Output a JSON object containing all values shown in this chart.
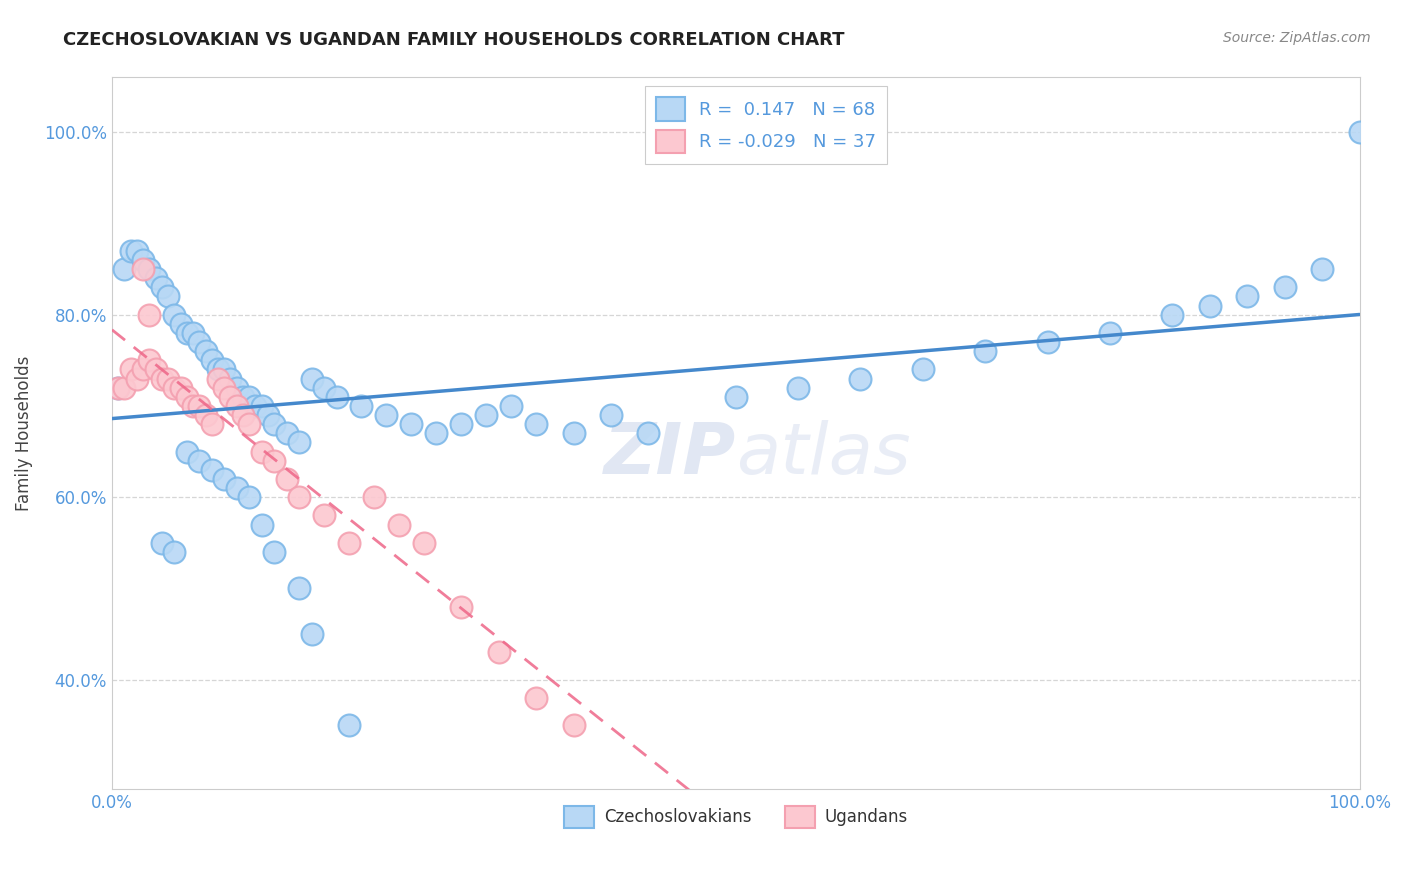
{
  "title": "CZECHOSLOVAKIAN VS UGANDAN FAMILY HOUSEHOLDS CORRELATION CHART",
  "source": "Source: ZipAtlas.com",
  "ylabel": "Family Households",
  "r_czech": 0.147,
  "n_czech": 68,
  "r_ugandan": -0.029,
  "n_ugandan": 37,
  "background": "#ffffff",
  "grid_color": "#cccccc",
  "czech_edge": "#7db8e8",
  "czech_face": "#b8d8f5",
  "ugandan_edge": "#f4a0b0",
  "ugandan_face": "#fcc8d0",
  "trend_czech_color": "#4488cc",
  "trend_ugandan_color": "#ee6688",
  "tick_label_color": "#5599dd",
  "watermark_color": "#ccddeebb",
  "czech_x": [
    0.5,
    1.0,
    1.5,
    2.0,
    2.5,
    3.0,
    3.5,
    4.0,
    4.5,
    5.0,
    5.5,
    6.0,
    6.5,
    7.0,
    7.5,
    8.0,
    8.5,
    9.0,
    9.5,
    10.0,
    10.5,
    11.0,
    11.5,
    12.0,
    12.5,
    13.0,
    14.0,
    15.0,
    16.0,
    17.0,
    18.0,
    20.0,
    22.0,
    24.0,
    26.0,
    28.0,
    30.0,
    32.0,
    34.0,
    37.0,
    40.0,
    43.0,
    50.0,
    55.0,
    60.0,
    65.0,
    70.0,
    75.0,
    80.0,
    85.0,
    88.0,
    91.0,
    94.0,
    97.0,
    100.0,
    6.0,
    7.0,
    8.0,
    9.0,
    10.0,
    11.0,
    12.0,
    13.0,
    4.0,
    5.0,
    15.0,
    16.0,
    19.0
  ],
  "czech_y": [
    72.0,
    85.0,
    87.0,
    87.0,
    86.0,
    85.0,
    84.0,
    83.0,
    82.0,
    80.0,
    79.0,
    78.0,
    78.0,
    77.0,
    76.0,
    75.0,
    74.0,
    74.0,
    73.0,
    72.0,
    71.0,
    71.0,
    70.0,
    70.0,
    69.0,
    68.0,
    67.0,
    66.0,
    73.0,
    72.0,
    71.0,
    70.0,
    69.0,
    68.0,
    67.0,
    68.0,
    69.0,
    70.0,
    68.0,
    67.0,
    69.0,
    67.0,
    71.0,
    72.0,
    73.0,
    74.0,
    76.0,
    77.0,
    78.0,
    80.0,
    81.0,
    82.0,
    83.0,
    85.0,
    100.0,
    65.0,
    64.0,
    63.0,
    62.0,
    61.0,
    60.0,
    57.0,
    54.0,
    55.0,
    54.0,
    50.0,
    45.0,
    35.0
  ],
  "ugandan_x": [
    0.5,
    1.0,
    1.5,
    2.0,
    2.5,
    3.0,
    3.5,
    4.0,
    4.5,
    5.0,
    5.5,
    6.0,
    6.5,
    7.0,
    7.5,
    8.0,
    8.5,
    9.0,
    9.5,
    10.0,
    10.5,
    11.0,
    12.0,
    13.0,
    14.0,
    15.0,
    17.0,
    19.0,
    21.0,
    23.0,
    25.0,
    28.0,
    31.0,
    34.0,
    37.0,
    3.0,
    2.5
  ],
  "ugandan_y": [
    72.0,
    72.0,
    74.0,
    73.0,
    74.0,
    75.0,
    74.0,
    73.0,
    73.0,
    72.0,
    72.0,
    71.0,
    70.0,
    70.0,
    69.0,
    68.0,
    73.0,
    72.0,
    71.0,
    70.0,
    69.0,
    68.0,
    65.0,
    64.0,
    62.0,
    60.0,
    58.0,
    55.0,
    60.0,
    57.0,
    55.0,
    48.0,
    43.0,
    38.0,
    35.0,
    80.0,
    85.0
  ],
  "y_ticks": [
    40.0,
    60.0,
    80.0,
    100.0
  ],
  "x_ticks": [
    0.0,
    100.0
  ],
  "ylim_min": 28,
  "ylim_max": 106
}
